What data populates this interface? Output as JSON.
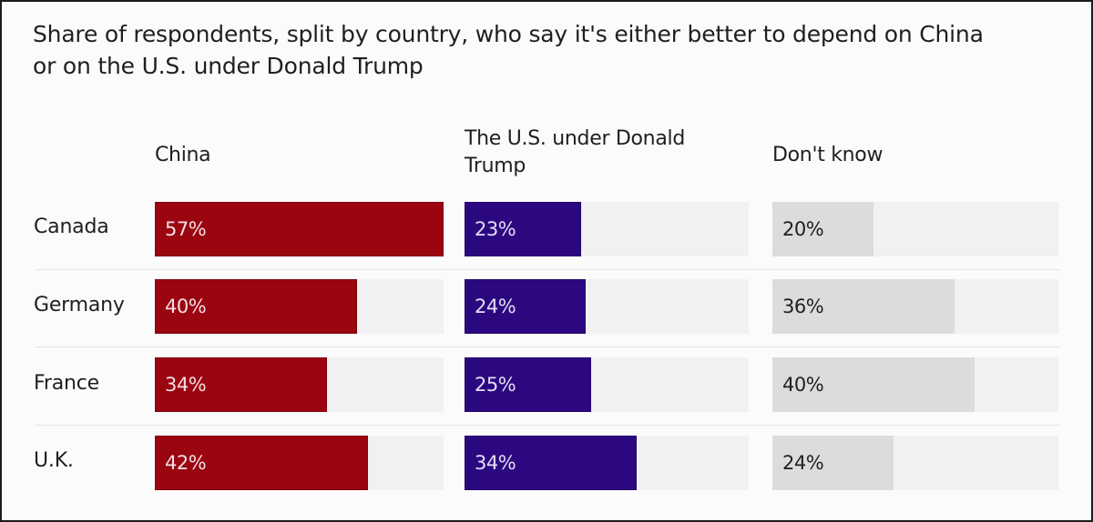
{
  "chart_data": {
    "type": "bar",
    "title": "Share of respondents, split by country, who say it's either better to depend on China or on the U.S. under Donald Trump",
    "xlabel": "",
    "ylabel": "",
    "categories": [
      "Canada",
      "Germany",
      "France",
      "U.K."
    ],
    "series": [
      {
        "name": "China",
        "color": "#9a0510",
        "values": [
          57,
          40,
          34,
          42
        ],
        "labels": [
          "57%",
          "40%",
          "34%",
          "42%"
        ]
      },
      {
        "name": "The U.S. under Donald Trump",
        "color": "#2c0880",
        "values": [
          23,
          24,
          25,
          34
        ],
        "labels": [
          "23%",
          "24%",
          "25%",
          "34%"
        ]
      },
      {
        "name": "Don't know",
        "color": "#dcdcde",
        "values": [
          20,
          36,
          40,
          24
        ],
        "labels": [
          "20%",
          "36%",
          "40%",
          "24%"
        ]
      }
    ],
    "xlim": [
      0,
      57
    ],
    "grid": false,
    "legend": "column headers above each bar group"
  },
  "title_line1": "Share of respondents, split by country, who say it's either better to depend on China",
  "title_line2": "or on the U.S. under Donald Trump"
}
